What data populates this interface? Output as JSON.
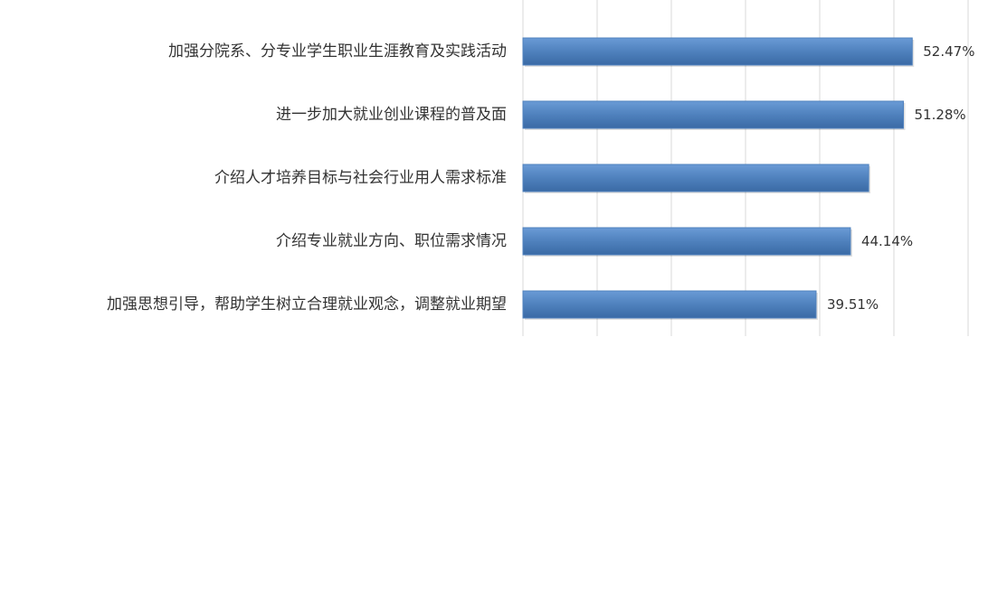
{
  "chart_data": {
    "type": "hbar",
    "categories": [
      "加强分院系、分专业学生职业生涯教育及实践活动",
      "进一步加大就业创业课程的普及面",
      "介绍人才培养目标与社会行业用人需求标准",
      "介绍专业就业方向、职位需求情况",
      "加强思想引导，帮助学生树立合理就业观念，调整就业期望"
    ],
    "values": [
      52.47,
      51.28,
      46.6,
      44.14,
      39.51
    ],
    "value_labels": [
      "52.47%",
      "51.28%",
      null,
      "44.14%",
      "39.51%"
    ],
    "color": "#4f81bd",
    "xlim": [
      0,
      65
    ],
    "xticks": [
      0,
      10,
      20,
      30,
      40,
      50,
      60
    ],
    "grid": true
  }
}
